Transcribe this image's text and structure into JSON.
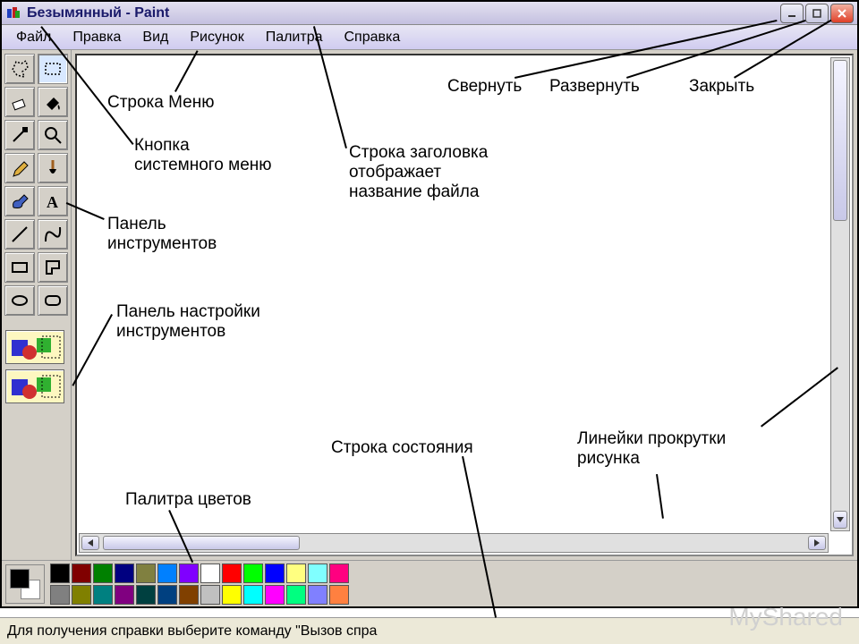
{
  "titlebar": {
    "title": "Безымянный - Paint"
  },
  "window_buttons": {
    "minimize": "_",
    "maximize": "□",
    "close": "X"
  },
  "menubar": [
    "Файл",
    "Правка",
    "Вид",
    "Рисунок",
    "Палитра",
    "Справка"
  ],
  "tools": [
    {
      "name": "free-select",
      "selected": false
    },
    {
      "name": "rect-select",
      "selected": true
    },
    {
      "name": "eraser",
      "selected": false
    },
    {
      "name": "fill",
      "selected": false
    },
    {
      "name": "picker",
      "selected": false
    },
    {
      "name": "magnifier",
      "selected": false
    },
    {
      "name": "pencil",
      "selected": false
    },
    {
      "name": "brush",
      "selected": false
    },
    {
      "name": "airbrush",
      "selected": false
    },
    {
      "name": "text",
      "selected": false
    },
    {
      "name": "line",
      "selected": false
    },
    {
      "name": "curve",
      "selected": false
    },
    {
      "name": "rectangle",
      "selected": false
    },
    {
      "name": "polygon",
      "selected": false
    },
    {
      "name": "ellipse",
      "selected": false
    },
    {
      "name": "rounded-rect",
      "selected": false
    }
  ],
  "palette": {
    "fg": "#000000",
    "bg": "#ffffff",
    "row1": [
      "#000000",
      "#808080",
      "#800000",
      "#808000",
      "#008000",
      "#008080",
      "#000080",
      "#800080",
      "#808040",
      "#004040",
      "#0080ff",
      "#004080",
      "#8000ff",
      "#804000"
    ],
    "row2": [
      "#ffffff",
      "#c0c0c0",
      "#ff0000",
      "#ffff00",
      "#00ff00",
      "#00ffff",
      "#0000ff",
      "#ff00ff",
      "#ffff80",
      "#00ff80",
      "#80ffff",
      "#8080ff",
      "#ff0080",
      "#ff8040"
    ]
  },
  "statusbar": {
    "text": "Для получения справки выберите команду \"Вызов спра"
  },
  "annotations": {
    "title_label": "Строка заголовка\nотображает\nназвание файла",
    "menu_label": "Строка Меню",
    "sysmenu_label": "Кнопка\nсистемного меню",
    "toolbox_label": "Панель\nинструментов",
    "options_label": "Панель настройки\nинструментов",
    "palette_label": "Палитра цветов",
    "status_label": "Строка состояния",
    "scroll_label": "Линейки прокрутки\nрисунка",
    "minimize_label": "Свернуть",
    "maximize_label": "Развернуть",
    "close_label": "Закрыть"
  },
  "watermark": "MyShared"
}
